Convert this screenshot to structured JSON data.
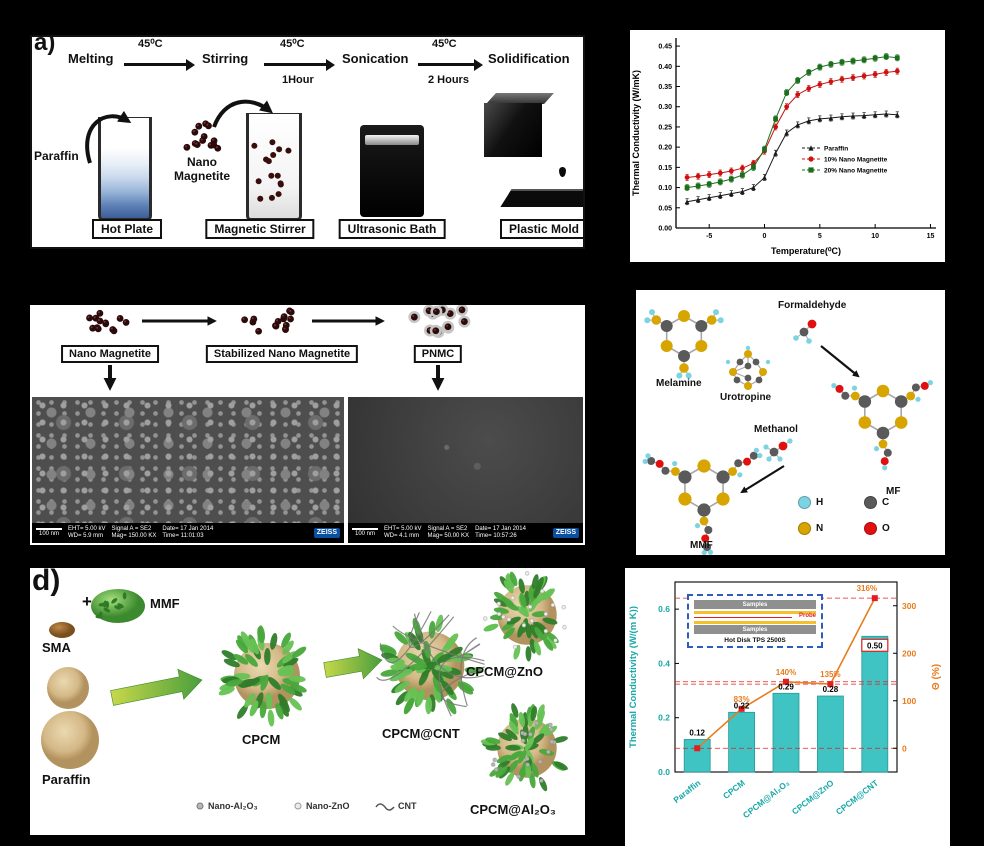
{
  "panel_a": {
    "label": "a)",
    "steps": [
      "Melting",
      "Stirring",
      "Sonication",
      "Solidification"
    ],
    "temps": [
      "45⁰C",
      "45⁰C",
      "45⁰C"
    ],
    "time1": "1Hour",
    "time2": "2 Hours",
    "paraffin": "Paraffin",
    "nano": "Nano Magnetite",
    "equipment": [
      "Hot Plate",
      "Magnetic Stirrer",
      "Ultrasonic Bath",
      "Plastic Mold"
    ]
  },
  "panel_c": {
    "boxes": [
      "Nano Magnetite",
      "Stabilized Nano Magnetite",
      "PNMC"
    ],
    "sem1": {
      "scale": "100 nm",
      "eht": "EHT= 5.00 kV",
      "wd": "WD= 5.9 mm",
      "signal": "Signal A = SE2",
      "mag": "Mag= 150.00 KX",
      "date": "Date= 17 Jan 2014",
      "time": "Time= 11:01:03",
      "brand": "ZEISS"
    },
    "sem2": {
      "scale": "100 nm",
      "eht": "EHT= 5.00 kV",
      "wd": "WD= 4.1 mm",
      "signal": "Signal A = SE2",
      "mag": "Mag= 50.00 KX",
      "date": "Date= 17 Jan 2014",
      "time": "Time= 10:57:26",
      "brand": "ZEISS"
    }
  },
  "panel_chem": {
    "labels": {
      "formaldehyde": "Formaldehyde",
      "melamine": "Melamine",
      "urotropine": "Urotropine",
      "methanol": "Methanol",
      "mf": "MF",
      "mmf": "MMF"
    },
    "atom_colors": {
      "H": "#7cd4e2",
      "C": "#5a5a5a",
      "N": "#d8a400",
      "O": "#e01010"
    },
    "legend_labels": {
      "H": "H",
      "C": "C",
      "N": "N",
      "O": "O"
    }
  },
  "panel_d": {
    "label": "d)",
    "plus": "+",
    "mmf": "MMF",
    "sma": "SMA",
    "paraffin": "Paraffin",
    "cpcm": "CPCM",
    "cpcm_cnt": "CPCM@CNT",
    "cpcm_zno": "CPCM@ZnO",
    "cpcm_al2o3": "CPCM@Al₂O₃",
    "legend": [
      "Nano-Al₂O₃",
      "Nano-ZnO",
      "CNT"
    ]
  },
  "chart_data": [
    {
      "type": "line",
      "title": "",
      "xlabel": "Temperature(⁰C)",
      "ylabel": "Thermal Conductivity (W/mK)",
      "xlim": [
        -8,
        15.5
      ],
      "ylim": [
        0,
        0.47
      ],
      "xticks": [
        -5,
        0,
        5,
        10,
        15
      ],
      "yticks": [
        0.0,
        0.05,
        0.1,
        0.15,
        0.2,
        0.25,
        0.3,
        0.35,
        0.4,
        0.45
      ],
      "grid": false,
      "legend_position": "right-middle",
      "x": [
        -7,
        -6,
        -5,
        -4,
        -3,
        -2,
        -1,
        0,
        1,
        2,
        3,
        4,
        5,
        6,
        7,
        8,
        9,
        10,
        11,
        12
      ],
      "series": [
        {
          "name": "Paraffin",
          "marker": "triangle",
          "color": "#1a1a1a",
          "values": [
            0.065,
            0.07,
            0.075,
            0.08,
            0.085,
            0.09,
            0.1,
            0.125,
            0.185,
            0.235,
            0.255,
            0.265,
            0.27,
            0.272,
            0.275,
            0.277,
            0.278,
            0.28,
            0.282,
            0.28
          ]
        },
        {
          "name": "10% Nano Magnetite",
          "marker": "circle",
          "color": "#cc1111",
          "values": [
            0.125,
            0.128,
            0.132,
            0.136,
            0.141,
            0.148,
            0.16,
            0.19,
            0.25,
            0.3,
            0.33,
            0.345,
            0.355,
            0.362,
            0.368,
            0.372,
            0.376,
            0.38,
            0.385,
            0.388
          ]
        },
        {
          "name": "20% Nano Magnetite",
          "marker": "square",
          "color": "#1c6e1c",
          "values": [
            0.1,
            0.104,
            0.108,
            0.114,
            0.121,
            0.131,
            0.15,
            0.195,
            0.27,
            0.335,
            0.365,
            0.385,
            0.398,
            0.405,
            0.41,
            0.413,
            0.416,
            0.42,
            0.424,
            0.421
          ]
        }
      ]
    },
    {
      "type": "bar",
      "categories": [
        "Paraffin",
        "CPCM",
        "CPCM@Al₂O₃",
        "CPCM@ZnO",
        "CPCM@CNT"
      ],
      "bar_values": [
        0.12,
        0.22,
        0.29,
        0.28,
        0.5
      ],
      "bar_labels": [
        "0.12",
        "0.22",
        "0.29",
        "0.28",
        "0.50"
      ],
      "boxed_label_index": 4,
      "enhancement_values": [
        0,
        83,
        140,
        135,
        316
      ],
      "enhancement_labels": [
        "",
        "83%",
        "140%",
        "135%",
        "316%"
      ],
      "ylabel_left": "Thermal Conductivity (W/(m K))",
      "ylabel_right": "Θ (%)",
      "yticks_left": [
        0.0,
        0.2,
        0.4,
        0.6
      ],
      "yticks_right": [
        0,
        100,
        200,
        300
      ],
      "ylim_left": [
        0,
        0.7
      ],
      "ylim_right": [
        -50,
        350
      ],
      "dashed_lines_right": [
        0,
        135,
        140,
        316
      ],
      "bar_color": "#3fc3c3",
      "axis_color_left": "#18a8a8",
      "line_color": "#e87c1e",
      "marker_color": "#e02020",
      "inset": {
        "title": "Hot Disk TPS 2500S",
        "sample_label": "Samples",
        "probe_label": "Probe"
      }
    }
  ]
}
